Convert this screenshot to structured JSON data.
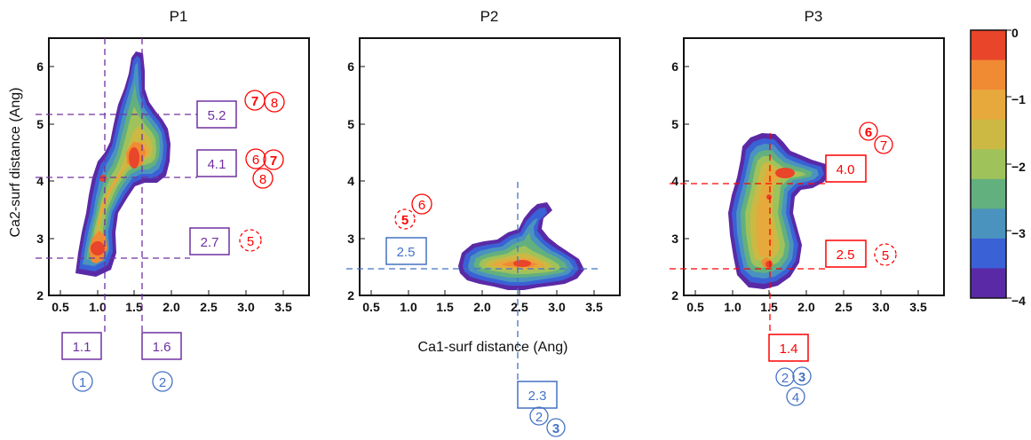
{
  "figure": {
    "xlabel": "Ca1-surf distance (Ang)",
    "ylabel": "Ca2-surf distance (Ang)"
  },
  "colors": {
    "purple": "#7030a0",
    "blue": "#4472c4",
    "red": "#ff0000"
  },
  "colorbar": {
    "ticks": [
      "0",
      "−1",
      "−2",
      "−3",
      "−4"
    ],
    "levels": [
      "#e8452a",
      "#f08a33",
      "#e7a83c",
      "#cbb944",
      "#9fc25b",
      "#63b07f",
      "#4a93be",
      "#3a61d6",
      "#5a2aa6"
    ]
  },
  "chart_data": [
    {
      "type": "contour",
      "title": "P1",
      "xlim": [
        0.4,
        3.9
      ],
      "ylim": [
        2.0,
        6.5
      ],
      "xticks": [
        "0.5",
        "1.0",
        "1.5",
        "2.0",
        "2.5",
        "3.0",
        "3.5"
      ],
      "yticks": [
        "2",
        "3",
        "4",
        "5",
        "6"
      ],
      "guides": {
        "color": "purple",
        "x": [
          {
            "value": 1.1,
            "label": "1.1",
            "states": [
              {
                "text": "1",
                "bold": false,
                "dashed": false,
                "color": "blue"
              }
            ]
          },
          {
            "value": 1.6,
            "label": "1.6",
            "states": [
              {
                "text": "2",
                "bold": false,
                "dashed": false,
                "color": "blue"
              }
            ]
          }
        ],
        "y": [
          {
            "value": 5.2,
            "label": "5.2",
            "states": [
              {
                "text": "7",
                "bold": true,
                "dashed": false,
                "color": "red"
              },
              {
                "text": "8",
                "bold": false,
                "dashed": false,
                "color": "red"
              }
            ]
          },
          {
            "value": 4.1,
            "label": "4.1",
            "states": [
              {
                "text": "6",
                "bold": false,
                "dashed": false,
                "color": "red"
              },
              {
                "text": "7",
                "bold": true,
                "dashed": false,
                "color": "red"
              },
              {
                "text": "8",
                "bold": false,
                "dashed": false,
                "color": "red"
              }
            ]
          },
          {
            "value": 2.7,
            "label": "2.7",
            "states": [
              {
                "text": "5",
                "bold": false,
                "dashed": true,
                "color": "red"
              }
            ]
          }
        ]
      },
      "minima": [
        [
          1.0,
          2.8
        ],
        [
          1.5,
          4.35
        ],
        [
          1.05,
          4.1
        ]
      ]
    },
    {
      "type": "contour",
      "title": "P2",
      "xlim": [
        0.4,
        3.9
      ],
      "ylim": [
        2.0,
        6.5
      ],
      "xticks": [
        "0.5",
        "1.0",
        "1.5",
        "2.0",
        "2.5",
        "3.0",
        "3.5"
      ],
      "yticks": [
        "2",
        "3",
        "4",
        "5",
        "6"
      ],
      "guides": {
        "color": "blue",
        "x": [
          {
            "value": 2.3,
            "label": "2.3",
            "states": [
              {
                "text": "2",
                "bold": false,
                "dashed": false,
                "color": "blue"
              },
              {
                "text": "3",
                "bold": true,
                "dashed": false,
                "color": "blue"
              }
            ]
          }
        ],
        "y": [
          {
            "value": 2.5,
            "label": "2.5",
            "states": []
          }
        ]
      },
      "states_free": [
        {
          "text": "5",
          "bold": true,
          "dashed": true,
          "color": "red"
        },
        {
          "text": "6",
          "bold": false,
          "dashed": false,
          "color": "red"
        }
      ],
      "minima": [
        [
          2.4,
          2.6
        ]
      ]
    },
    {
      "type": "contour",
      "title": "P3",
      "xlim": [
        0.4,
        3.9
      ],
      "ylim": [
        2.0,
        6.5
      ],
      "xticks": [
        "0.5",
        "1.0",
        "1.5",
        "2.0",
        "2.5",
        "3.0",
        "3.5"
      ],
      "yticks": [
        "2",
        "3",
        "4",
        "5",
        "6"
      ],
      "guides": {
        "color": "red",
        "x": [
          {
            "value": 1.4,
            "label": "1.4",
            "states": [
              {
                "text": "2",
                "bold": false,
                "dashed": false,
                "color": "blue"
              },
              {
                "text": "3",
                "bold": true,
                "dashed": false,
                "color": "blue"
              },
              {
                "text": "4",
                "bold": false,
                "dashed": false,
                "color": "blue"
              }
            ]
          }
        ],
        "y": [
          {
            "value": 4.0,
            "label": "4.0",
            "states": []
          },
          {
            "value": 2.5,
            "label": "2.5",
            "states": [
              {
                "text": "5",
                "bold": false,
                "dashed": true,
                "color": "red"
              }
            ]
          }
        ]
      },
      "states_free": [
        {
          "text": "6",
          "bold": true,
          "dashed": false,
          "color": "red"
        },
        {
          "text": "7",
          "bold": false,
          "dashed": false,
          "color": "red"
        }
      ],
      "minima": [
        [
          1.6,
          4.15
        ],
        [
          1.4,
          2.5
        ]
      ]
    }
  ]
}
